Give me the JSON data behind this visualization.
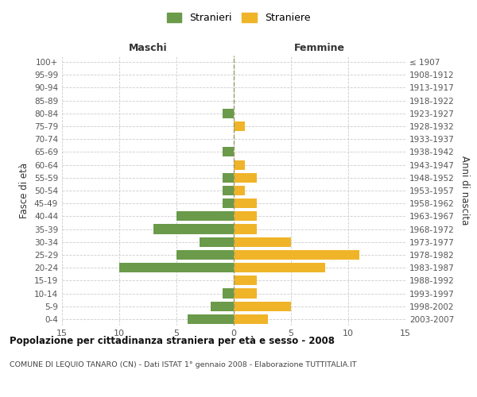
{
  "age_groups": [
    "0-4",
    "5-9",
    "10-14",
    "15-19",
    "20-24",
    "25-29",
    "30-34",
    "35-39",
    "40-44",
    "45-49",
    "50-54",
    "55-59",
    "60-64",
    "65-69",
    "70-74",
    "75-79",
    "80-84",
    "85-89",
    "90-94",
    "95-99",
    "100+"
  ],
  "birth_years": [
    "2003-2007",
    "1998-2002",
    "1993-1997",
    "1988-1992",
    "1983-1987",
    "1978-1982",
    "1973-1977",
    "1968-1972",
    "1963-1967",
    "1958-1962",
    "1953-1957",
    "1948-1952",
    "1943-1947",
    "1938-1942",
    "1933-1937",
    "1928-1932",
    "1923-1927",
    "1918-1922",
    "1913-1917",
    "1908-1912",
    "≤ 1907"
  ],
  "males": [
    4,
    2,
    1,
    0,
    10,
    5,
    3,
    7,
    5,
    1,
    1,
    1,
    0,
    1,
    0,
    0,
    1,
    0,
    0,
    0,
    0
  ],
  "females": [
    3,
    5,
    2,
    2,
    8,
    11,
    5,
    2,
    2,
    2,
    1,
    2,
    1,
    0,
    0,
    1,
    0,
    0,
    0,
    0,
    0
  ],
  "male_color": "#6a9a4a",
  "female_color": "#f0b429",
  "title": "Popolazione per cittadinanza straniera per età e sesso - 2008",
  "subtitle": "COMUNE DI LEQUIO TANARO (CN) - Dati ISTAT 1° gennaio 2008 - Elaborazione TUTTITALIA.IT",
  "ylabel_left": "Fasce di età",
  "ylabel_right": "Anni di nascita",
  "xlabel_left": "Maschi",
  "xlabel_right": "Femmine",
  "legend_male": "Stranieri",
  "legend_female": "Straniere",
  "xlim": 15,
  "background_color": "#ffffff",
  "grid_color": "#cccccc",
  "centerline_color": "#999966"
}
